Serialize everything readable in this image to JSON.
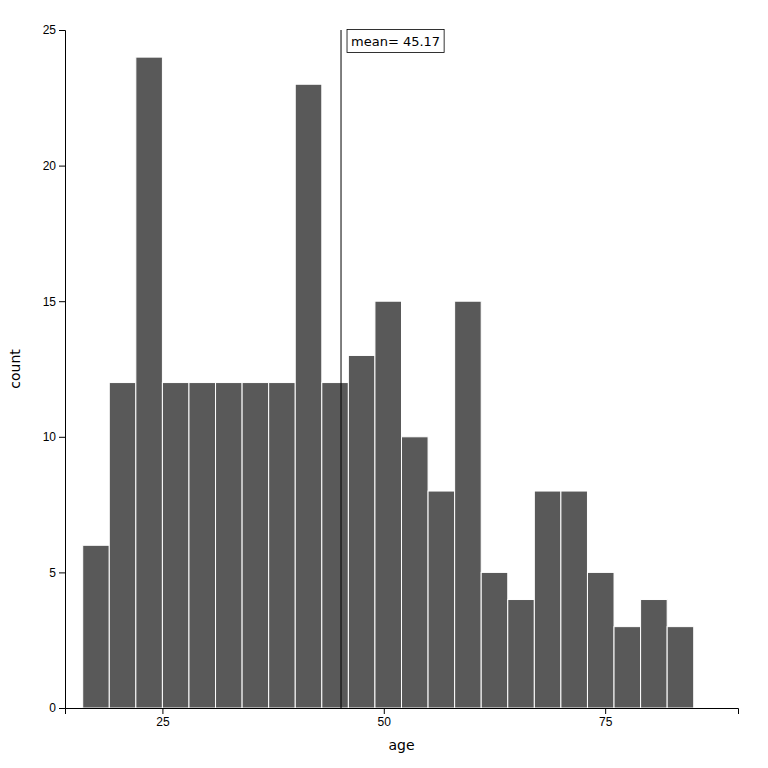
{
  "chart_data": {
    "type": "histogram",
    "bins": [
      16,
      19,
      22,
      25,
      28,
      31,
      34,
      37,
      40,
      43,
      46,
      49,
      52,
      55,
      58,
      61,
      64,
      67,
      70,
      73,
      76,
      79,
      82,
      85
    ],
    "values": [
      6,
      12,
      24,
      12,
      12,
      12,
      12,
      12,
      23,
      12,
      13,
      15,
      10,
      8,
      15,
      5,
      4,
      8,
      8,
      5,
      3,
      4,
      3
    ],
    "color": "#595959",
    "xlabel": "age",
    "ylabel": "count",
    "xlim": [
      14,
      90
    ],
    "ylim": [
      0,
      25
    ],
    "xticks": [
      25,
      50,
      75
    ],
    "yticks": [
      0,
      5,
      10,
      15,
      20,
      25
    ],
    "grid": false,
    "annotations": [
      {
        "x": 45.17,
        "text": "mean= 45.17"
      }
    ]
  }
}
